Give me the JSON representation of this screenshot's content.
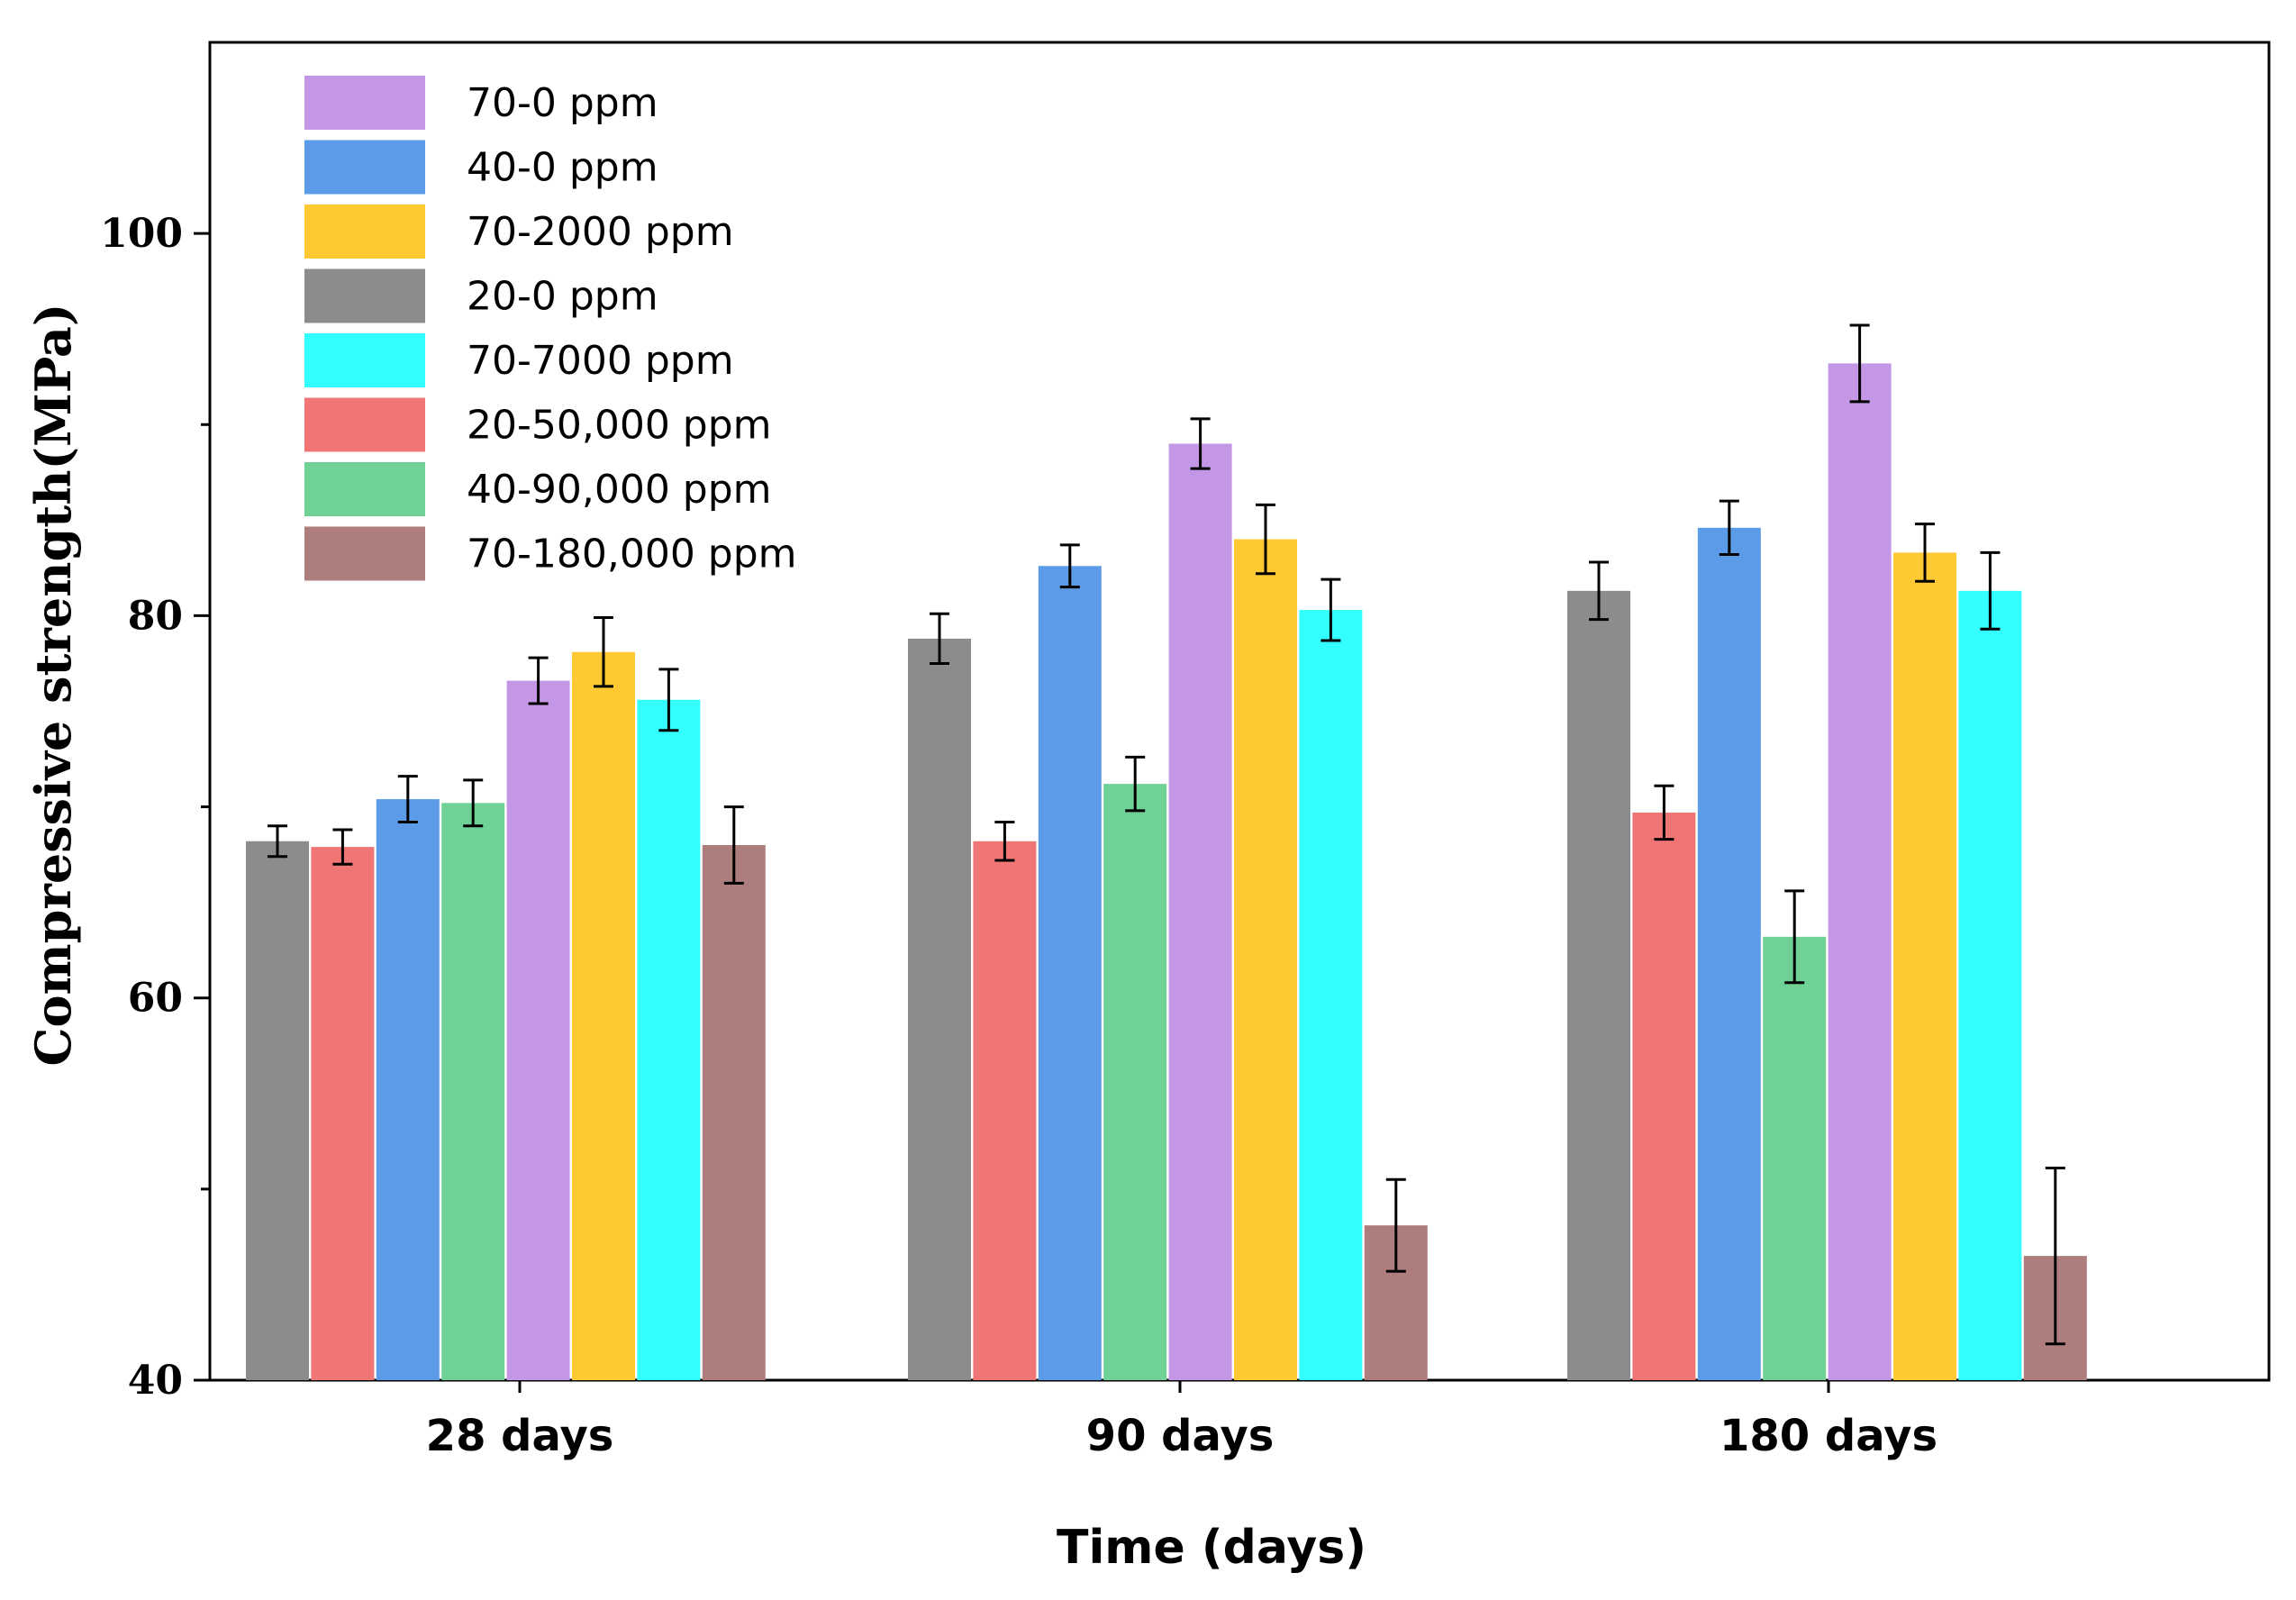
{
  "chart_data": {
    "type": "bar",
    "title": "",
    "xlabel": "Time (days)",
    "ylabel": "Compressive strength(MPa)",
    "ylim": [
      40,
      110
    ],
    "yticks": [
      40,
      60,
      80,
      100
    ],
    "categories": [
      "28 days",
      "90 days",
      "180 days"
    ],
    "legend_position": "top-left",
    "legend_order": [
      "70-0 ppm",
      "40-0 ppm",
      "70-2000 ppm",
      "20-0 ppm",
      "70-7000 ppm",
      "20-50,000 ppm",
      "40-90,000 ppm",
      "70-180,000 ppm"
    ],
    "groups": [
      {
        "category": "28 days",
        "bars": [
          {
            "series": "20-0 ppm",
            "value": 68.2,
            "error": 0.8
          },
          {
            "series": "20-50,000 ppm",
            "value": 67.9,
            "error": 0.9
          },
          {
            "series": "40-0 ppm",
            "value": 70.4,
            "error": 1.2
          },
          {
            "series": "40-90,000 ppm",
            "value": 70.2,
            "error": 1.2
          },
          {
            "series": "70-0 ppm",
            "value": 76.6,
            "error": 1.2
          },
          {
            "series": "70-2000 ppm",
            "value": 78.1,
            "error": 1.8
          },
          {
            "series": "70-7000 ppm",
            "value": 75.6,
            "error": 1.6
          },
          {
            "series": "70-180,000 ppm",
            "value": 68.0,
            "error": 2.0
          }
        ]
      },
      {
        "category": "90 days",
        "bars": [
          {
            "series": "20-0 ppm",
            "value": 78.8,
            "error": 1.3
          },
          {
            "series": "20-50,000 ppm",
            "value": 68.2,
            "error": 1.0
          },
          {
            "series": "40-0 ppm",
            "value": 82.6,
            "error": 1.1
          },
          {
            "series": "40-90,000 ppm",
            "value": 71.2,
            "error": 1.4
          },
          {
            "series": "70-0 ppm",
            "value": 89.0,
            "error": 1.3
          },
          {
            "series": "70-2000 ppm",
            "value": 84.0,
            "error": 1.8
          },
          {
            "series": "70-7000 ppm",
            "value": 80.3,
            "error": 1.6
          },
          {
            "series": "70-180,000 ppm",
            "value": 48.1,
            "error": 2.4
          }
        ]
      },
      {
        "category": "180 days",
        "bars": [
          {
            "series": "20-0 ppm",
            "value": 81.3,
            "error": 1.5
          },
          {
            "series": "20-50,000 ppm",
            "value": 69.7,
            "error": 1.4
          },
          {
            "series": "40-0 ppm",
            "value": 84.6,
            "error": 1.4
          },
          {
            "series": "40-90,000 ppm",
            "value": 63.2,
            "error": 2.4
          },
          {
            "series": "70-0 ppm",
            "value": 93.2,
            "error": 2.0
          },
          {
            "series": "70-2000 ppm",
            "value": 83.3,
            "error": 1.5
          },
          {
            "series": "70-7000 ppm",
            "value": 81.3,
            "error": 2.0
          },
          {
            "series": "70-180,000 ppm",
            "value": 46.5,
            "error": 4.6
          }
        ]
      }
    ]
  },
  "colors": {
    "70-0 ppm": "#c497e6",
    "40-0 ppm": "#5b9be8",
    "70-2000 ppm": "#ffc933",
    "20-0 ppm": "#8c8c8c",
    "70-7000 ppm": "#33ffff",
    "20-50,000 ppm": "#f07575",
    "40-90,000 ppm": "#70d196",
    "70-180,000 ppm": "#ae7d7d"
  }
}
